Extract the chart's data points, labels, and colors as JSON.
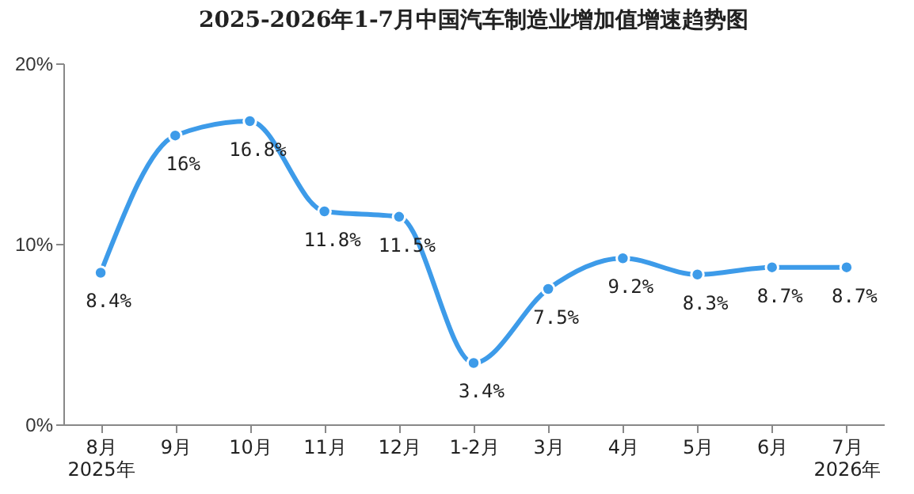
{
  "chart_data": {
    "type": "line",
    "title": "2025-2026年1-7月中国汽车制造业增加值增速趋势图",
    "categories": [
      "8月\n2025年",
      "9月",
      "10月",
      "11月",
      "12月",
      "1-2月",
      "3月",
      "4月",
      "5月",
      "6月",
      "7月\n2026年"
    ],
    "series": [
      {
        "color": "#3d9be9",
        "values": [
          8.4,
          16,
          16.8,
          11.8,
          11.5,
          3.4,
          7.5,
          9.2,
          8.3,
          8.7,
          8.7
        ],
        "value_labels": [
          "8.4%",
          "16%",
          "16.8%",
          "11.8%",
          "11.5%",
          "3.4%",
          "7.5%",
          "9.2%",
          "8.3%",
          "8.7%",
          "8.7%"
        ]
      }
    ],
    "ylim": [
      0,
      20
    ],
    "yticks": [
      {
        "value": 0,
        "label": "0%"
      },
      {
        "value": 10,
        "label": "10%"
      },
      {
        "value": 20,
        "label": "20%"
      }
    ],
    "marker": "circle",
    "grid": false
  }
}
